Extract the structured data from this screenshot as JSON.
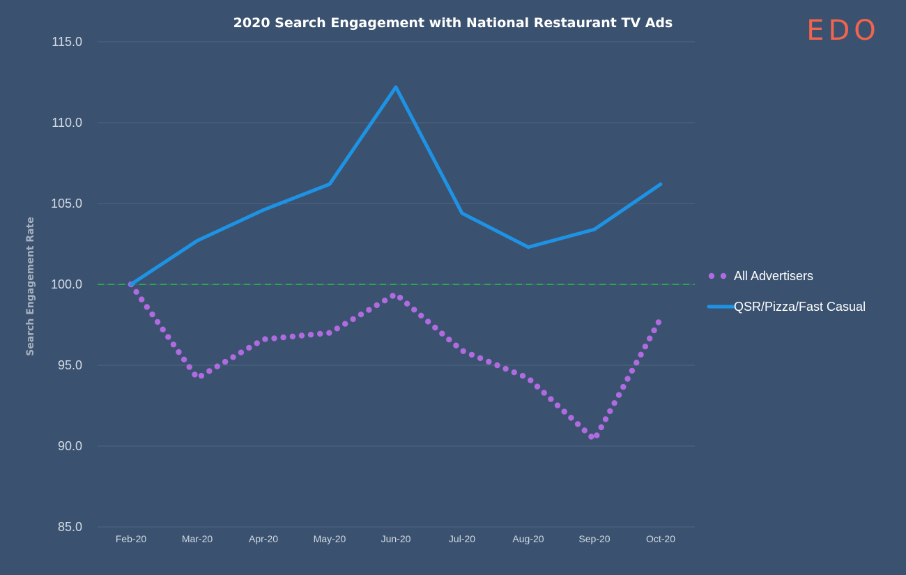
{
  "chart_data": {
    "type": "line",
    "title": "2020 Search Engagement with National Restaurant TV Ads",
    "xlabel": "",
    "ylabel": "Search Engagement Rate",
    "categories": [
      "Feb-20",
      "Mar-20",
      "Apr-20",
      "May-20",
      "Jun-20",
      "Jul-20",
      "Aug-20",
      "Sep-20",
      "Oct-20"
    ],
    "yticks": [
      "115.0",
      "110.0",
      "105.0",
      "100.0",
      "95.0",
      "90.0",
      "85.0"
    ],
    "ylim": [
      85,
      115
    ],
    "grid": true,
    "reference_line": {
      "value": 100,
      "style": "dashed",
      "color": "#2aa84a"
    },
    "legend_position": "right",
    "series": [
      {
        "name": "All Advertisers",
        "style": "dotted",
        "color": "#b06be0",
        "values": [
          100.0,
          94.2,
          96.6,
          97.0,
          99.4,
          95.9,
          94.2,
          90.4,
          97.9
        ]
      },
      {
        "name": "QSR/Pizza/Fast Casual",
        "style": "solid",
        "color": "#1e93e5",
        "values": [
          100.0,
          102.7,
          104.6,
          106.2,
          112.2,
          104.4,
          102.3,
          103.4,
          106.2
        ]
      }
    ]
  },
  "brand": {
    "logo_text": "EDO"
  }
}
